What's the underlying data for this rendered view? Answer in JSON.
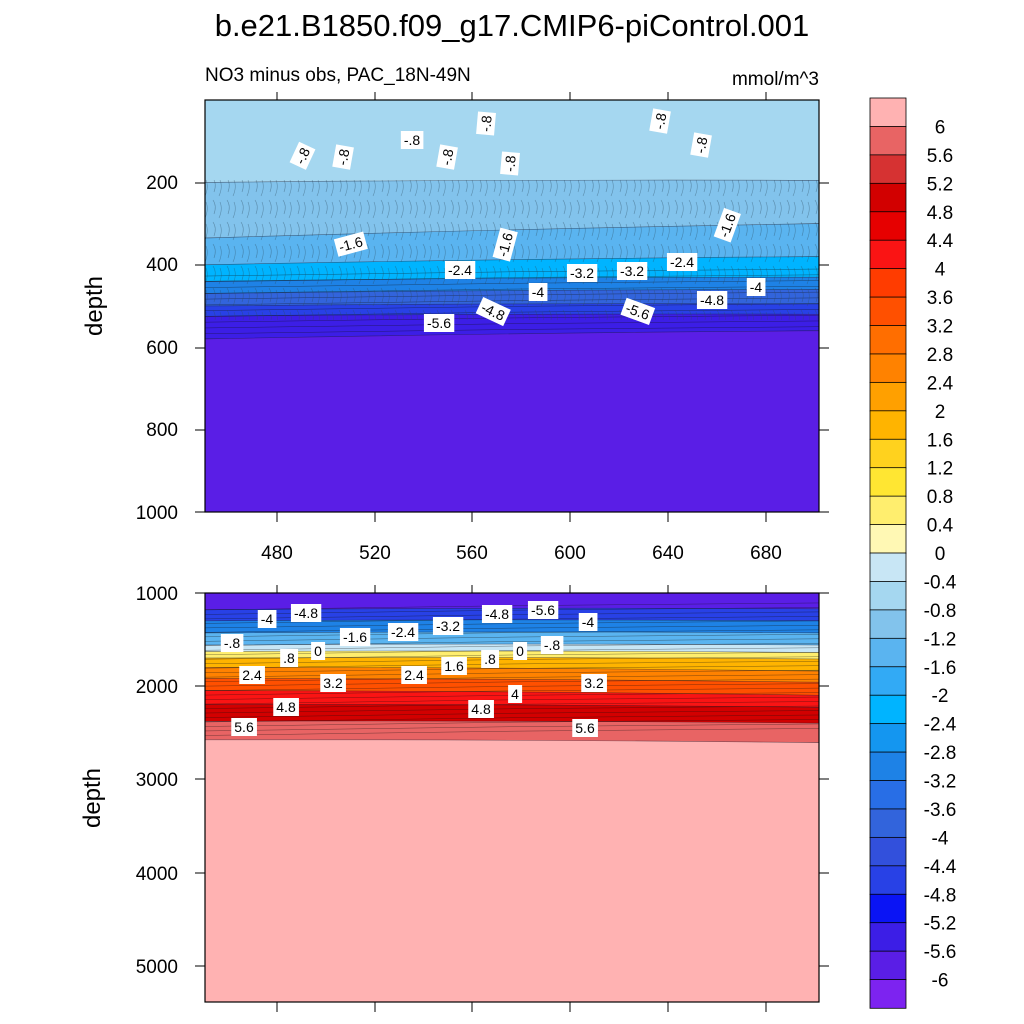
{
  "title": "b.e21.B1850.f09_g17.CMIP6-piControl.001",
  "chart_data": {
    "type": "heatmap",
    "variable_label": "NO3 minus obs, PAC_18N-49N",
    "units": "mmol/m^3",
    "colorbar": {
      "levels": [
        "6",
        "5.6",
        "5.2",
        "4.8",
        "4.4",
        "4",
        "3.6",
        "3.2",
        "2.8",
        "2.4",
        "2",
        "1.6",
        "1.2",
        "0.8",
        "0.4",
        "0",
        "-0.4",
        "-0.8",
        "-1.2",
        "-1.6",
        "-2",
        "-2.4",
        "-2.8",
        "-3.2",
        "-3.6",
        "-4",
        "-4.4",
        "-4.8",
        "-5.2",
        "-5.6",
        "-6"
      ],
      "colors": [
        "#ffb2b2",
        "#e86464",
        "#d63232",
        "#d20000",
        "#e60000",
        "#fa1414",
        "#ff3c00",
        "#ff5000",
        "#ff6e00",
        "#ff8200",
        "#ffa000",
        "#ffb400",
        "#ffd21e",
        "#ffe632",
        "#ffee6e",
        "#fff8b4",
        "#c8e6f5",
        "#a5d7f0",
        "#82c3ec",
        "#5ab4f0",
        "#32aaf5",
        "#00b4ff",
        "#1496f0",
        "#1e82e6",
        "#286ee6",
        "#3264dc",
        "#3250dc",
        "#2841e6",
        "#0a14f5",
        "#3c1ee6",
        "#5a1ee6",
        "#7d23f0"
      ]
    },
    "panels": [
      {
        "name": "upper",
        "ylabel": "depth",
        "ylim": [
          0,
          1000
        ],
        "yticks": [
          "200",
          "400",
          "600",
          "800",
          "1000"
        ],
        "xlim": [
          452,
          702
        ],
        "xticks": [
          "480",
          "520",
          "560",
          "600",
          "640",
          "680"
        ],
        "layers_top_to_bottom": [
          {
            "value": -0.8,
            "depth_start": 0,
            "depth_end_west": 200,
            "depth_end_east": 195
          },
          {
            "value": -1.2,
            "depth_end_west": 335,
            "depth_end_east": 300
          },
          {
            "value": -1.6,
            "depth_end_west": 400,
            "depth_end_east": 380
          },
          {
            "value": -2.4,
            "depth_end_west": 440,
            "depth_end_east": 430
          },
          {
            "value": -3.2,
            "depth_end_west": 470,
            "depth_end_east": 460
          },
          {
            "value": -4.0,
            "depth_end_west": 500,
            "depth_end_east": 495
          },
          {
            "value": -4.8,
            "depth_end_west": 525,
            "depth_end_east": 520
          },
          {
            "value": -5.6,
            "depth_end_west": 580,
            "depth_end_east": 560
          },
          {
            "value": -6.0,
            "depth_end_west": 1000,
            "depth_end_east": 1000
          }
        ],
        "contour_labels": [
          "-.8",
          "-.8",
          "-.8",
          "-.8",
          "-.8",
          "-.8",
          "-.8",
          "-.8",
          "-1.6",
          "-1.6",
          "-1.6",
          "-2.4",
          "-2.4",
          "-3.2",
          "-3.2",
          "-4",
          "-4",
          "-4.8",
          "-4.8",
          "-5.6",
          "-5.6"
        ]
      },
      {
        "name": "lower",
        "ylabel": "depth",
        "ylim": [
          1000,
          5400
        ],
        "yticks": [
          "1000",
          "2000",
          "3000",
          "4000",
          "5000"
        ],
        "xlim": [
          452,
          702
        ],
        "layers_top_to_bottom": [
          {
            "value": -6.0,
            "depth_end_west": 1180,
            "depth_end_east": 1170
          },
          {
            "value": -4.8,
            "depth_end_west": 1300,
            "depth_end_east": 1300
          },
          {
            "value": -3.2,
            "depth_end_west": 1430,
            "depth_end_east": 1430
          },
          {
            "value": -1.6,
            "depth_end_west": 1560,
            "depth_end_east": 1560
          },
          {
            "value": -0.4,
            "depth_end_west": 1630,
            "depth_end_east": 1640
          },
          {
            "value": 0.4,
            "depth_end_west": 1700,
            "depth_end_east": 1710
          },
          {
            "value": 1.6,
            "depth_end_west": 1800,
            "depth_end_east": 1840
          },
          {
            "value": 2.4,
            "depth_end_west": 1920,
            "depth_end_east": 1960
          },
          {
            "value": 3.2,
            "depth_end_west": 2050,
            "depth_end_east": 2100
          },
          {
            "value": 4.0,
            "depth_end_west": 2200,
            "depth_end_east": 2230
          },
          {
            "value": 4.8,
            "depth_end_west": 2380,
            "depth_end_east": 2400
          },
          {
            "value": 5.6,
            "depth_end_west": 2580,
            "depth_end_east": 2610
          },
          {
            "value": 6.0,
            "depth_end_west": 5400,
            "depth_end_east": 5400
          }
        ],
        "contour_labels": [
          "-4",
          "-4.8",
          "-4.8",
          "-5.6",
          "-4",
          "-.8",
          "-1.6",
          "-2.4",
          "-3.2",
          "-.8",
          ".8",
          "0",
          ".8",
          "0",
          "2.4",
          "1.6",
          "3.2",
          "2.4",
          "3.2",
          "4",
          "4.8",
          "4.8",
          "5.6",
          "5.6"
        ]
      }
    ]
  }
}
